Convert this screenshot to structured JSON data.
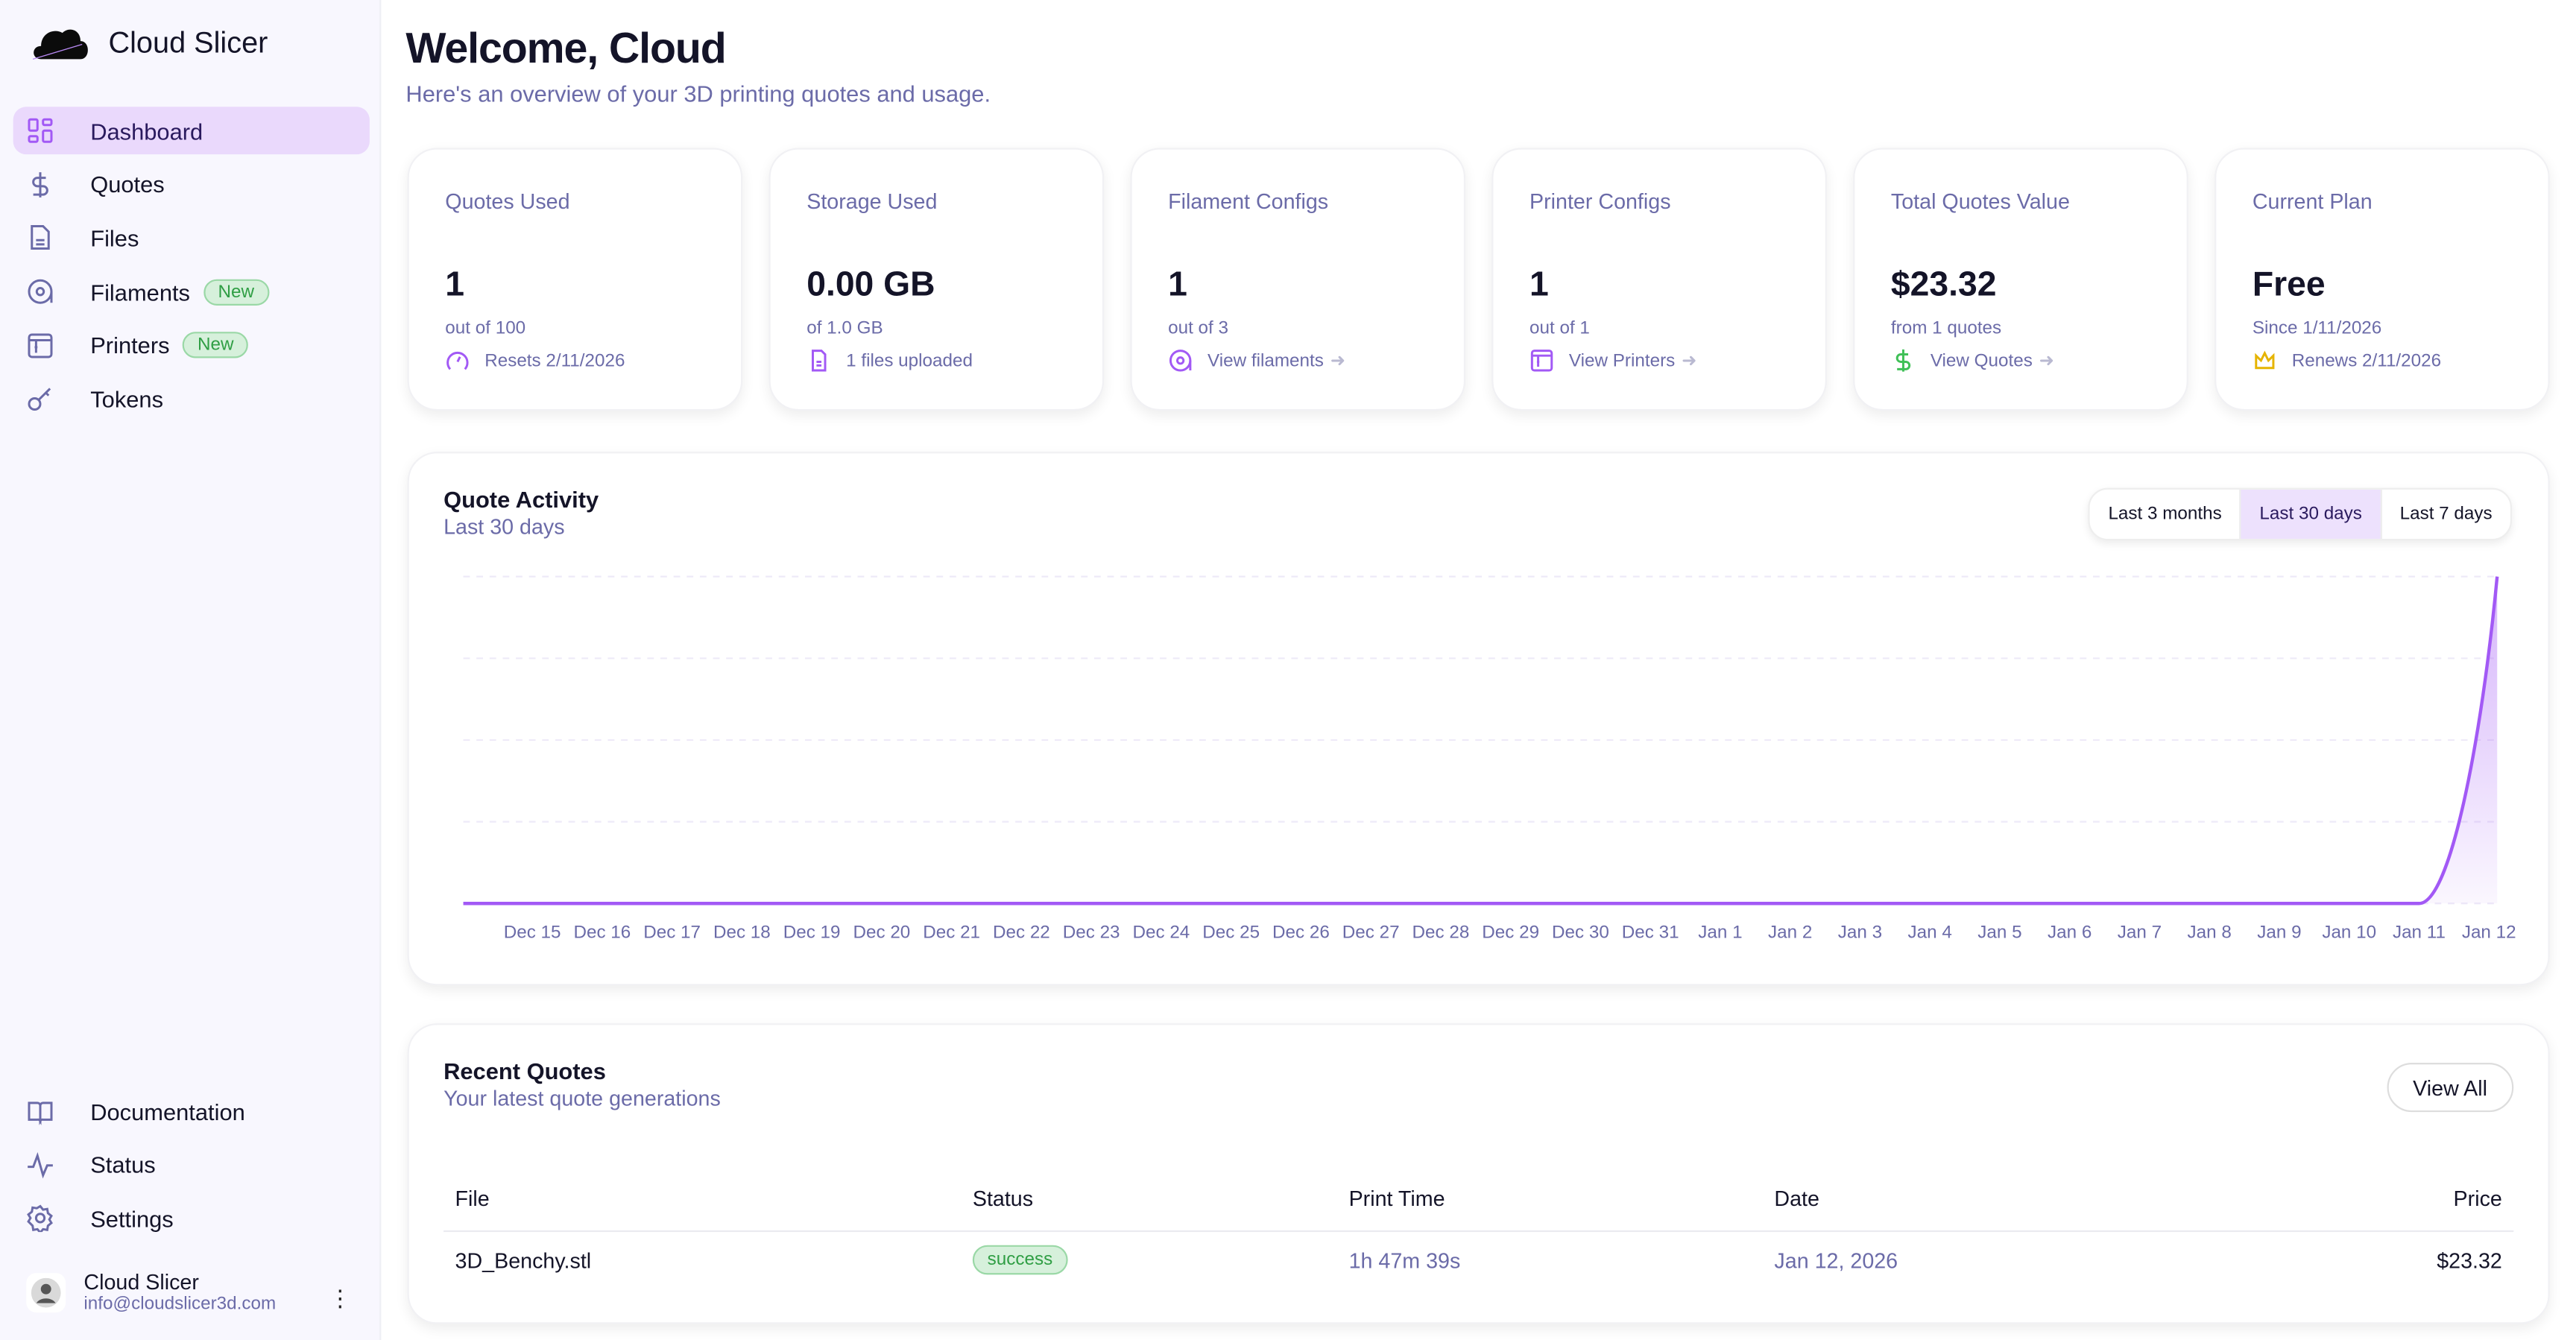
{
  "app": {
    "name": "Cloud Slicer"
  },
  "sidebar": {
    "items": [
      {
        "label": "Dashboard",
        "icon": "dashboard-grid-icon",
        "active": true
      },
      {
        "label": "Quotes",
        "icon": "dollar-icon"
      },
      {
        "label": "Files",
        "icon": "file-icon"
      },
      {
        "label": "Filaments",
        "icon": "filament-spool-icon",
        "badge": "New"
      },
      {
        "label": "Printers",
        "icon": "printer-icon",
        "badge": "New"
      },
      {
        "label": "Tokens",
        "icon": "key-icon"
      }
    ],
    "bottom_items": [
      {
        "label": "Documentation",
        "icon": "book-icon"
      },
      {
        "label": "Status",
        "icon": "activity-icon"
      },
      {
        "label": "Settings",
        "icon": "gear-icon"
      }
    ],
    "user": {
      "name": "Cloud Slicer",
      "email": "info@cloudslicer3d.com"
    }
  },
  "header": {
    "title": "Welcome, Cloud",
    "subtitle": "Here's an overview of your 3D printing quotes and usage."
  },
  "stats": [
    {
      "label": "Quotes Used",
      "value": "1",
      "sub": "out of 100",
      "foot": "Resets 2/11/2026",
      "icon": "gauge-icon"
    },
    {
      "label": "Storage Used",
      "value": "0.00 GB",
      "sub": "of 1.0 GB",
      "foot": "1 files uploaded",
      "icon": "file-icon"
    },
    {
      "label": "Filament Configs",
      "value": "1",
      "sub": "out of 3",
      "foot": "View filaments",
      "icon": "filament-spool-icon",
      "link": true
    },
    {
      "label": "Printer Configs",
      "value": "1",
      "sub": "out of 1",
      "foot": "View Printers",
      "icon": "printer-icon",
      "link": true
    },
    {
      "label": "Total Quotes Value",
      "value": "$23.32",
      "sub": "from 1 quotes",
      "foot": "View Quotes",
      "icon": "dollar-icon",
      "link": true
    },
    {
      "label": "Current Plan",
      "value": "Free",
      "sub": "Since 1/11/2026",
      "foot": "Renews 2/11/2026",
      "icon": "crown-icon"
    }
  ],
  "colors": {
    "accent": "#a259f5",
    "accent_bg": "#ead9fc",
    "success": "#2f9e44",
    "crown": "#e6b400",
    "muted": "#6b6ba8"
  },
  "activity": {
    "title": "Quote Activity",
    "subtitle": "Last 30 days",
    "ranges": [
      "Last 3 months",
      "Last 30 days",
      "Last 7 days"
    ],
    "selected_range": "Last 30 days"
  },
  "chart_data": {
    "type": "area",
    "categories": [
      "Dec 15",
      "Dec 16",
      "Dec 17",
      "Dec 18",
      "Dec 19",
      "Dec 20",
      "Dec 21",
      "Dec 22",
      "Dec 23",
      "Dec 24",
      "Dec 25",
      "Dec 26",
      "Dec 27",
      "Dec 28",
      "Dec 29",
      "Dec 30",
      "Dec 31",
      "Jan 1",
      "Jan 2",
      "Jan 3",
      "Jan 4",
      "Jan 5",
      "Jan 6",
      "Jan 7",
      "Jan 8",
      "Jan 9",
      "Jan 10",
      "Jan 11",
      "Jan 12"
    ],
    "values": [
      0,
      0,
      0,
      0,
      0,
      0,
      0,
      0,
      0,
      0,
      0,
      0,
      0,
      0,
      0,
      0,
      0,
      0,
      0,
      0,
      0,
      0,
      0,
      0,
      0,
      0,
      0,
      0,
      1
    ],
    "ylim": [
      0,
      1
    ],
    "grid": true,
    "color": "#a259f5"
  },
  "recent": {
    "title": "Recent Quotes",
    "subtitle": "Your latest quote generations",
    "view_all": "View All",
    "columns": [
      "File",
      "Status",
      "Print Time",
      "Date",
      "Price"
    ],
    "rows": [
      {
        "file": "3D_Benchy.stl",
        "status": "success",
        "print_time": "1h 47m 39s",
        "date": "Jan 12, 2026",
        "price": "$23.32"
      }
    ]
  }
}
